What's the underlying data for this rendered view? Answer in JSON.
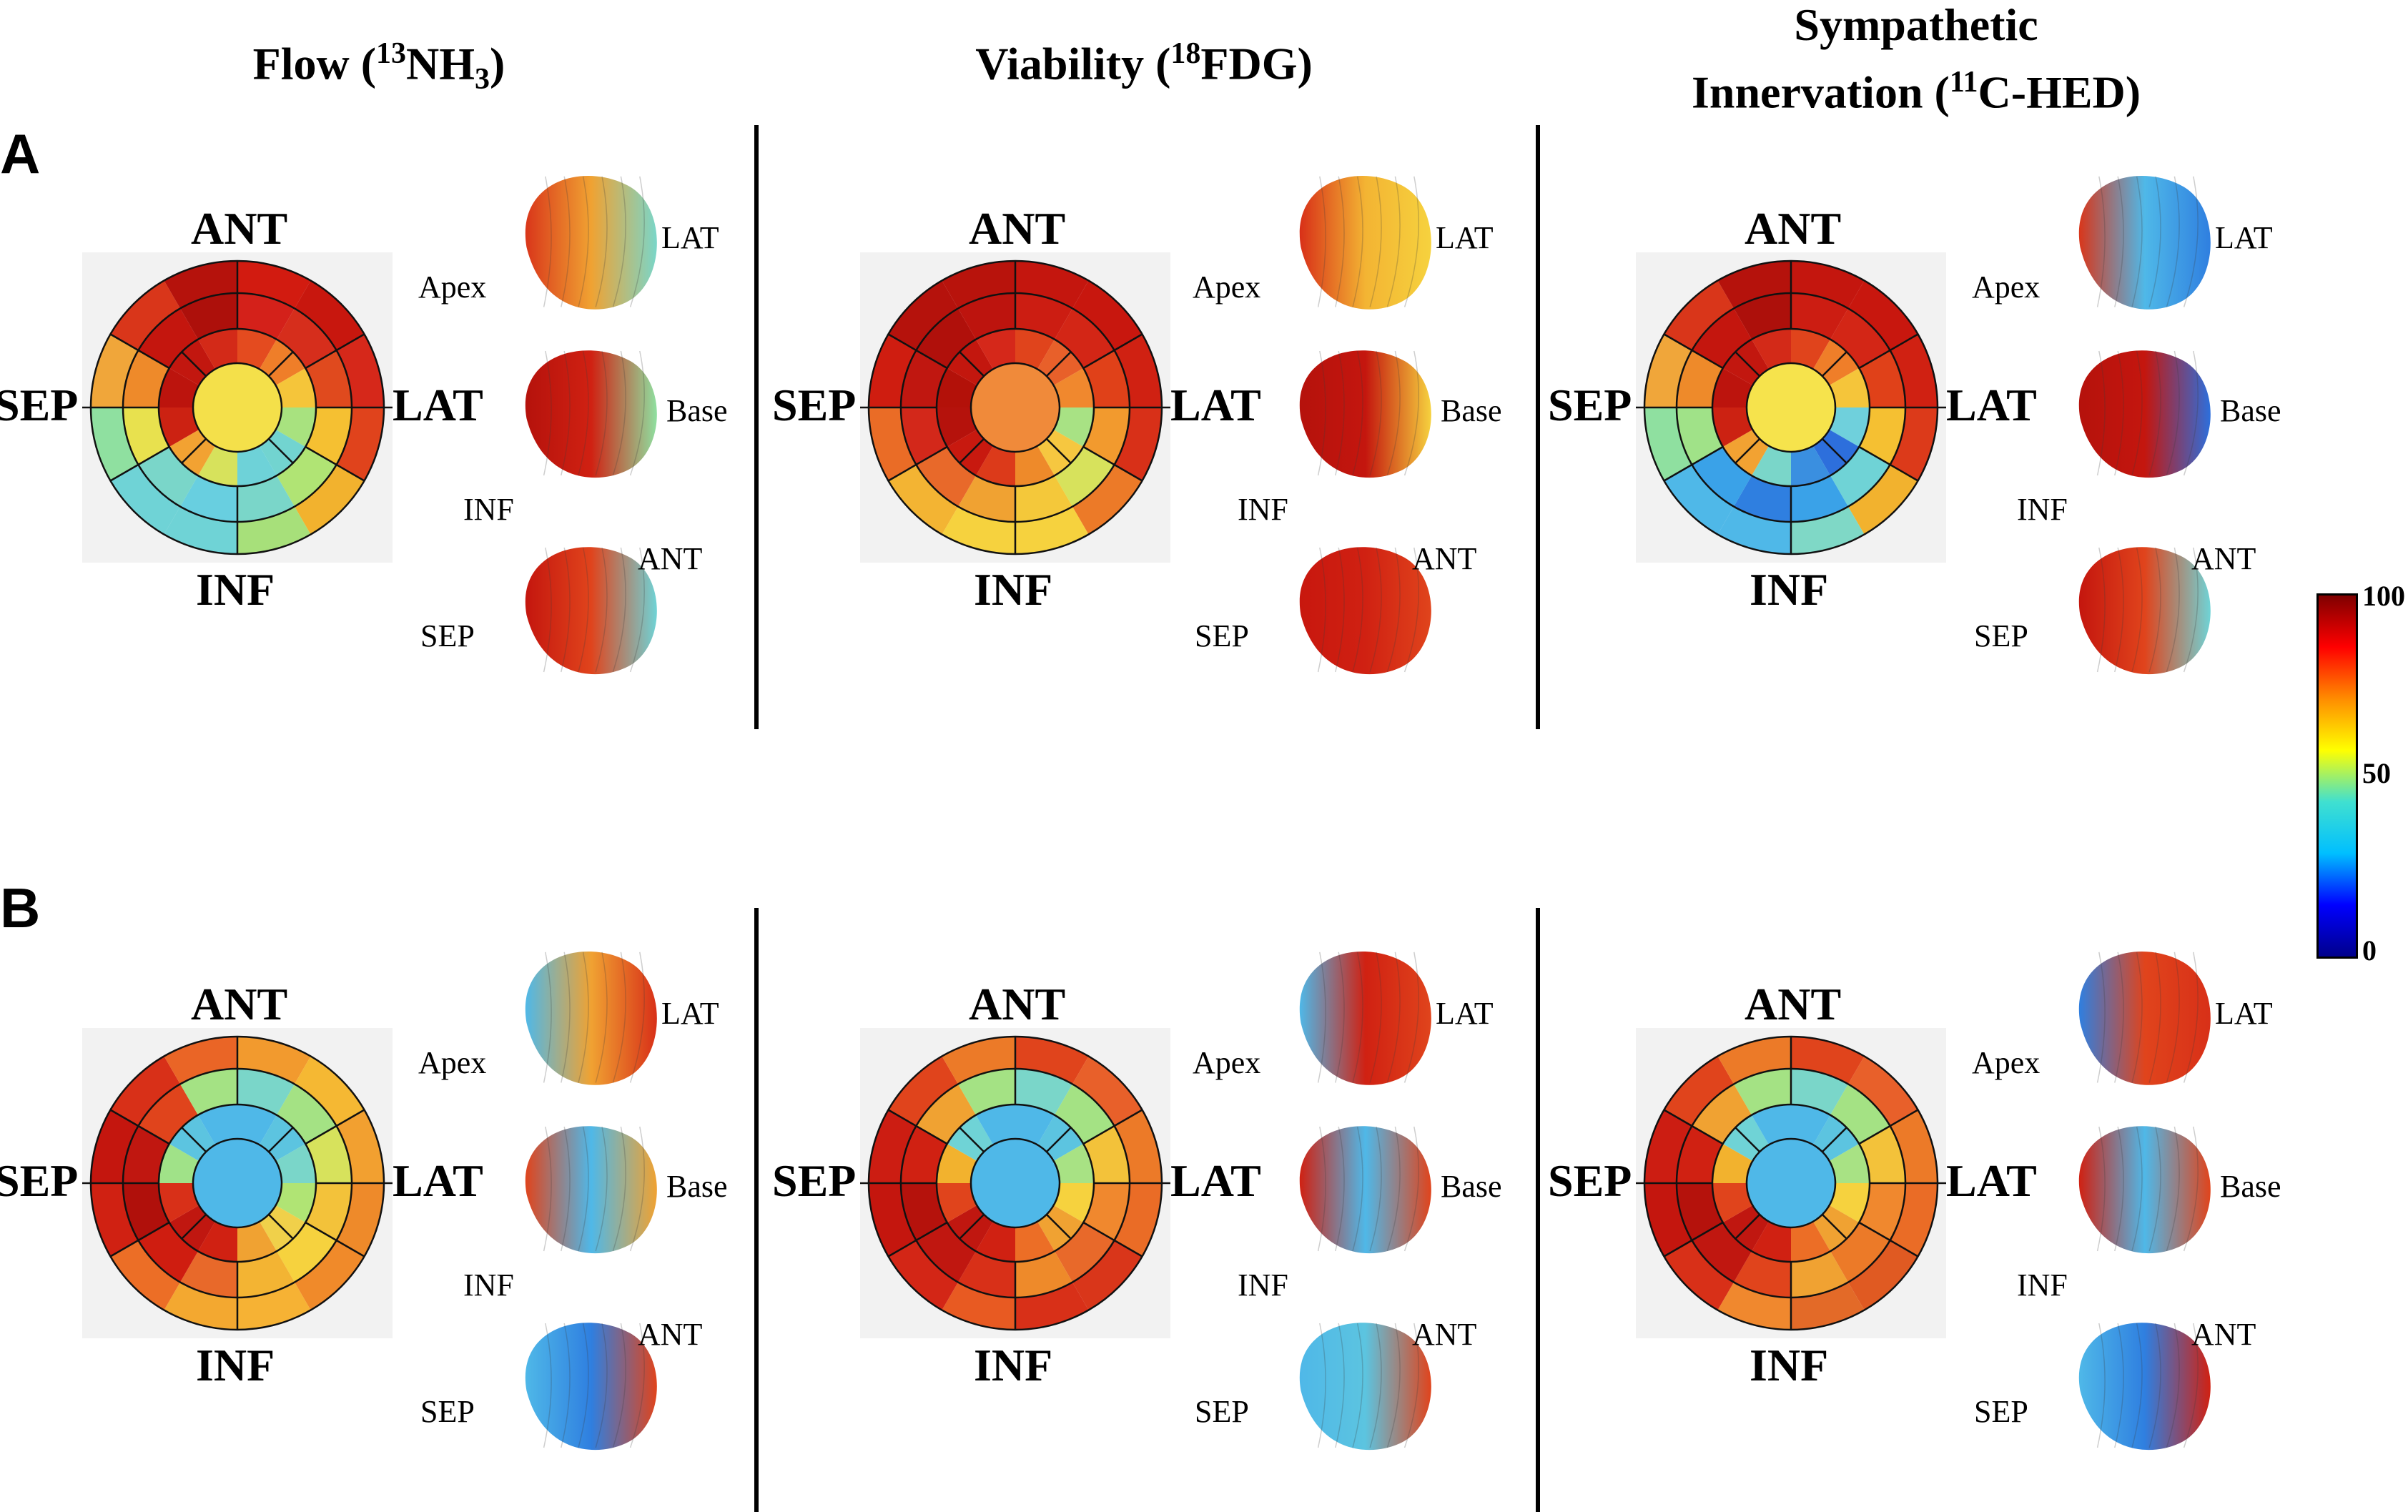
{
  "columns": [
    {
      "title_main": "Flow (",
      "title_sup": "13",
      "title_mid": "NH",
      "title_sub": "3",
      "title_end": ")"
    },
    {
      "title_main": "Viability (",
      "title_sup": "18",
      "title_mid": "FDG)",
      "title_sub": "",
      "title_end": ""
    },
    {
      "title_line1": "Sympathetic",
      "title_main": "Innervation (",
      "title_sup": "11",
      "title_mid": "C-HED)",
      "title_sub": "",
      "title_end": ""
    }
  ],
  "panels": [
    "A",
    "B"
  ],
  "polar_labels": {
    "top": "ANT",
    "bottom": "INF",
    "left": "SEP",
    "right": "LAT"
  },
  "view_labels": {
    "apex": "Apex",
    "lat": "LAT",
    "base": "Base",
    "inf": "INF",
    "ant": "ANT",
    "sep": "SEP"
  },
  "colorbar": {
    "ticks": [
      "100",
      "50",
      "0"
    ],
    "stops": [
      "#7f0000",
      "#ff0000",
      "#ff8c00",
      "#ffff00",
      "#40e0d0",
      "#00bfff",
      "#0000ff",
      "#00008b"
    ]
  },
  "maps": [
    {
      "panel": "A",
      "col": 0,
      "center": "#f4e04a",
      "rings": [
        [
          "#d21b10",
          "#c8170e",
          "#d6281a",
          "#e0431c",
          "#f2b22e",
          "#a7e07a",
          "#6fd3d6",
          "#6fd3d6",
          "#8fe0a0",
          "#f0a63a",
          "#d9361a",
          "#b5120c"
        ],
        [
          "#d4211a",
          "#d62e1c",
          "#e04a1e",
          "#f5c032",
          "#b0e474",
          "#7ad6c9",
          "#68cfe0",
          "#7ad6c9",
          "#e8e14e",
          "#ee8a2a",
          "#c4160e",
          "#ad100b"
        ],
        [
          "#e44b1f",
          "#ef7e29",
          "#f5c53a",
          "#a8e27f",
          "#72d4d0",
          "#6ed2d8",
          "#d7e25c",
          "#f2a232",
          "#cc2212",
          "#bc140d",
          "#c2170f",
          "#d32a18"
        ]
      ]
    },
    {
      "panel": "A",
      "col": 1,
      "center": "#f08a3a",
      "rings": [
        [
          "#c4160e",
          "#c8170e",
          "#d02112",
          "#d83018",
          "#ec7a28",
          "#f6d23e",
          "#f6d23e",
          "#f3b433",
          "#ea6c26",
          "#cf1d10",
          "#b5120c",
          "#b8130c"
        ],
        [
          "#cc1d12",
          "#d32616",
          "#e04119",
          "#f29a2e",
          "#d7e25c",
          "#f4c83a",
          "#f0a232",
          "#e8692a",
          "#d3281a",
          "#c01710",
          "#b0100b",
          "#bd140e"
        ],
        [
          "#e0441c",
          "#e8602a",
          "#f0882e",
          "#a8e284",
          "#f6c740",
          "#ee8a2a",
          "#dc3a1a",
          "#c8190f",
          "#b5120c",
          "#b31109",
          "#c3170e",
          "#d5281a"
        ]
      ]
    },
    {
      "panel": "A",
      "col": 2,
      "center": "#f6e34c",
      "rings": [
        [
          "#c4160e",
          "#c8170e",
          "#d02112",
          "#dc3a1a",
          "#f2b22e",
          "#7fd8c6",
          "#4fb8e8",
          "#4fb8e8",
          "#8fe0a0",
          "#f0a63a",
          "#d9361a",
          "#b5120c"
        ],
        [
          "#cc1d12",
          "#d32616",
          "#e04119",
          "#f5c032",
          "#6fd3d6",
          "#3aa2e8",
          "#2f7fe0",
          "#3aa2e8",
          "#a0e288",
          "#ee8a2a",
          "#c4160e",
          "#ad100b"
        ],
        [
          "#e0441c",
          "#ef7e29",
          "#f5c53a",
          "#6fd0dc",
          "#2d6fdc",
          "#3a8fe0",
          "#7ad6c9",
          "#f2a232",
          "#cc2212",
          "#bc140d",
          "#c2170f",
          "#d32a18"
        ]
      ]
    },
    {
      "panel": "B",
      "col": 0,
      "center": "#4fb8e8",
      "rings": [
        [
          "#f29a2e",
          "#f5b833",
          "#f2a030",
          "#ee8a2a",
          "#f08a2a",
          "#f6b234",
          "#f3a830",
          "#ec6e26",
          "#d02112",
          "#c4160e",
          "#d83018",
          "#ea6526"
        ],
        [
          "#7ad6c9",
          "#a4e284",
          "#d7e25c",
          "#f3c23a",
          "#f6d23e",
          "#f3b433",
          "#e8692a",
          "#cf1d10",
          "#b0100b",
          "#c01710",
          "#e0441c",
          "#a4e284"
        ],
        [
          "#4fb8e8",
          "#5cc4e0",
          "#7ad6c9",
          "#b0e474",
          "#f0d04a",
          "#f0a232",
          "#d02112",
          "#c01710",
          "#d83018",
          "#a0e288",
          "#5cc4e0",
          "#4fb8e8"
        ]
      ]
    },
    {
      "panel": "B",
      "col": 1,
      "center": "#4fb8e8",
      "rings": [
        [
          "#e0441c",
          "#e8602a",
          "#ec7a28",
          "#ea6c26",
          "#d9361a",
          "#d83018",
          "#e85a22",
          "#d32616",
          "#c4160e",
          "#cc1d12",
          "#e0441c",
          "#ec7a28"
        ],
        [
          "#7ad6c9",
          "#a4e284",
          "#f3c23a",
          "#f0882e",
          "#e8692a",
          "#ee8a2a",
          "#d83018",
          "#c01710",
          "#b5120c",
          "#d02112",
          "#f0a232",
          "#a4e284"
        ],
        [
          "#4fb8e8",
          "#5cc4e0",
          "#a8e284",
          "#f6d23e",
          "#f0a232",
          "#ec6e26",
          "#d02112",
          "#c01710",
          "#e0441c",
          "#f2b22e",
          "#6fd3d6",
          "#4fb8e8"
        ]
      ]
    },
    {
      "panel": "B",
      "col": 2,
      "center": "#4fb8e8",
      "rings": [
        [
          "#e0441c",
          "#e8602a",
          "#ec7a28",
          "#ea6c26",
          "#e05a22",
          "#e36a28",
          "#f0882e",
          "#d83018",
          "#c4160e",
          "#cc1d12",
          "#e0441c",
          "#ec7a28"
        ],
        [
          "#7ad6c9",
          "#a4e284",
          "#f3c23a",
          "#f0882e",
          "#ec7a28",
          "#f0a232",
          "#e0441c",
          "#c01710",
          "#b5120c",
          "#d02112",
          "#f0a232",
          "#a4e284"
        ],
        [
          "#4fb8e8",
          "#5cc4e0",
          "#a8e284",
          "#f6d23e",
          "#f0a232",
          "#ec6e26",
          "#d02112",
          "#c01710",
          "#e0441c",
          "#f2b22e",
          "#6fd3d6",
          "#4fb8e8"
        ]
      ]
    }
  ],
  "hearts": [
    {
      "panel": "A",
      "col": 0,
      "top": [
        "#d9361a",
        "#f0a232",
        "#7ad6c9"
      ],
      "mid": [
        "#8fe0a0",
        "#d02112",
        "#b5120c"
      ],
      "bot": [
        "#c4160e",
        "#e0441c",
        "#6fd3d6"
      ]
    },
    {
      "panel": "A",
      "col": 1,
      "top": [
        "#d83018",
        "#f3b433",
        "#f6d23e"
      ],
      "mid": [
        "#f6d23e",
        "#c4160e",
        "#b5120c"
      ],
      "bot": [
        "#c8170e",
        "#d02112",
        "#e0441c"
      ]
    },
    {
      "panel": "A",
      "col": 2,
      "top": [
        "#d9361a",
        "#4fb8e8",
        "#2f7fe0"
      ],
      "mid": [
        "#2d6fdc",
        "#c4160e",
        "#b5120c"
      ],
      "bot": [
        "#c4160e",
        "#e0441c",
        "#6fd3d6"
      ]
    },
    {
      "panel": "B",
      "col": 0,
      "top": [
        "#4fb8e8",
        "#f0a232",
        "#d83018"
      ],
      "mid": [
        "#f0a232",
        "#4fb8e8",
        "#e0441c"
      ],
      "bot": [
        "#4fb8e8",
        "#2f7fe0",
        "#e0441c"
      ]
    },
    {
      "panel": "B",
      "col": 1,
      "top": [
        "#4fb8e8",
        "#d02112",
        "#e0441c"
      ],
      "mid": [
        "#e0441c",
        "#4fb8e8",
        "#d02112"
      ],
      "bot": [
        "#4fb8e8",
        "#5cc4e0",
        "#e0441c"
      ]
    },
    {
      "panel": "B",
      "col": 2,
      "top": [
        "#2f7fe0",
        "#e0441c",
        "#d83018"
      ],
      "mid": [
        "#e0441c",
        "#4fb8e8",
        "#d02112"
      ],
      "bot": [
        "#4fb8e8",
        "#2f7fe0",
        "#d02112"
      ]
    }
  ]
}
